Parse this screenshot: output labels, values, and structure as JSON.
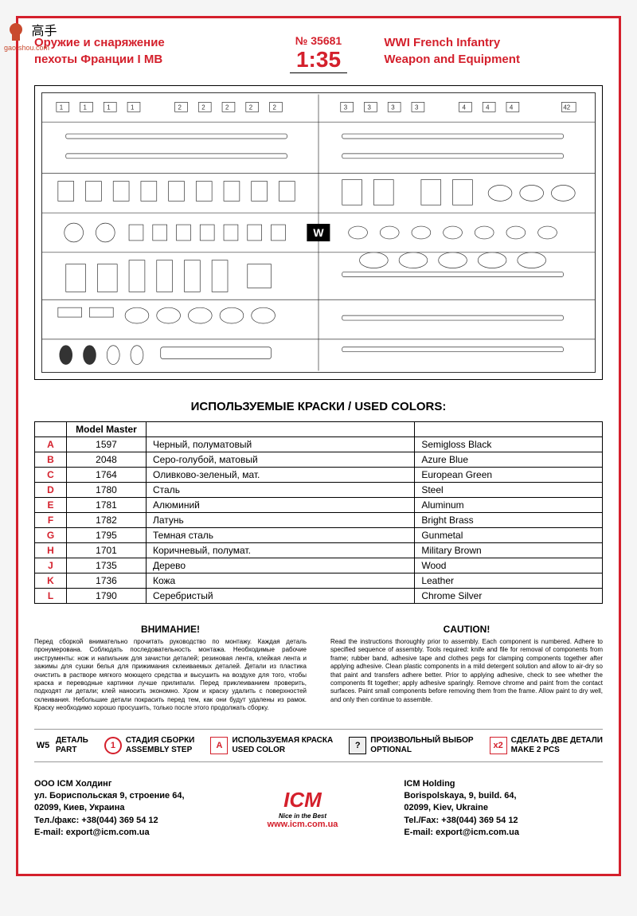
{
  "watermark": {
    "text": "高手",
    "url": "gao-shou.com"
  },
  "header": {
    "left_line1": "Оружие и снаряжение",
    "left_line2": "пехоты Франции I МВ",
    "number": "№ 35681",
    "scale": "1:35",
    "right_line1": "WWI French Infantry",
    "right_line2": "Weapon and Equipment"
  },
  "sprue": {
    "label": "W"
  },
  "colors": {
    "title": "ИСПОЛЬЗУЕМЫЕ КРАСКИ / USED COLORS:",
    "header_mm": "Model Master",
    "rows": [
      {
        "k": "A",
        "mm": "1597",
        "ru": "Черный, полуматовый",
        "en": "Semigloss Black"
      },
      {
        "k": "B",
        "mm": "2048",
        "ru": "Серо-голубой, матовый",
        "en": "Azure Blue"
      },
      {
        "k": "C",
        "mm": "1764",
        "ru": "Оливково-зеленый, мат.",
        "en": "European Green"
      },
      {
        "k": "D",
        "mm": "1780",
        "ru": "Сталь",
        "en": "Steel"
      },
      {
        "k": "E",
        "mm": "1781",
        "ru": "Алюминий",
        "en": "Aluminum"
      },
      {
        "k": "F",
        "mm": "1782",
        "ru": "Латунь",
        "en": "Bright Brass"
      },
      {
        "k": "G",
        "mm": "1795",
        "ru": "Темная сталь",
        "en": "Gunmetal"
      },
      {
        "k": "H",
        "mm": "1701",
        "ru": "Коричневый, полумат.",
        "en": "Military Brown"
      },
      {
        "k": "J",
        "mm": "1735",
        "ru": "Дерево",
        "en": "Wood"
      },
      {
        "k": "K",
        "mm": "1736",
        "ru": "Кожа",
        "en": "Leather"
      },
      {
        "k": "L",
        "mm": "1790",
        "ru": "Серебристый",
        "en": "Chrome Silver"
      }
    ]
  },
  "caution": {
    "ru_title": "ВНИМАНИЕ!",
    "ru_text": "Перед сборкой внимательно прочитать руководство по монтажу. Каждая деталь пронумерована. Соблюдать последовательность монтажа. Необходимые рабочие инструменты: нож и напильник для зачистки деталей; резиновая лента, клейкая лента и зажимы для сушки белья для прижимания склеиваемых деталей. Детали из пластика очистить в растворе мягкого моющего средства и высушить на воздухе для того, чтобы краска и переводные картинки лучше прилипали. Перед приклеиванием проверить, подходят ли детали; клей наносить экономно. Хром и краску удалить с поверхностей склеивания. Небольшие детали покрасить перед тем, как они будут удалены из рамок. Краску необходимо хорошо просушить, только после этого продолжать сборку.",
    "en_title": "CAUTION!",
    "en_text": "Read the instructions thoroughly prior to assembly. Each component is numbered. Adhere to specified sequence of assembly. Tools required: knife and file for removal of components from frame; rubber band, adhesive tape and clothes pegs for clamping components together after applying adhesive. Clean plastic components in a mild detergent solution and allow to air-dry so that paint and transfers adhere better. Prior to applying adhesive, check to see whether the components fit together; apply adhesive sparingly. Remove chrome and paint from the contact surfaces. Paint small components before removing them from the frame. Allow paint to dry well, and only then continue to assemble."
  },
  "legend": {
    "part": {
      "icon": "W5",
      "ru": "ДЕТАЛЬ",
      "en": "PART"
    },
    "step": {
      "icon": "1",
      "ru": "СТАДИЯ СБОРКИ",
      "en": "ASSEMBLY STEP"
    },
    "color": {
      "icon": "A",
      "ru": "ИСПОЛЬЗУЕМАЯ КРАСКА",
      "en": "USED COLOR"
    },
    "optional": {
      "icon": "?",
      "ru": "ПРОИЗВОЛЬНЫЙ ВЫБОР",
      "en": "OPTIONAL"
    },
    "make2": {
      "icon": "x2",
      "ru": "СДЕЛАТЬ ДВЕ ДЕТАЛИ",
      "en": "MAKE 2 PCS"
    }
  },
  "footer": {
    "left": {
      "l1": "ООО ІСМ Холдинг",
      "l2": "ул. Бориспольская 9, строение 64,",
      "l3": "02099, Киев, Украина",
      "l4": "Тел./факс: +38(044) 369 54 12",
      "l5": "E-mail: export@icm.com.ua"
    },
    "center": {
      "logo": "ICM",
      "sub": "Nice in the Best",
      "url": "www.icm.com.ua"
    },
    "right": {
      "l1": "ICM Holding",
      "l2": "Borispolskaya, 9, build. 64,",
      "l3": "02099, Kiev, Ukraine",
      "l4": "Tel./Fax: +38(044) 369 54 12",
      "l5": "E-mail: export@icm.com.ua"
    }
  }
}
